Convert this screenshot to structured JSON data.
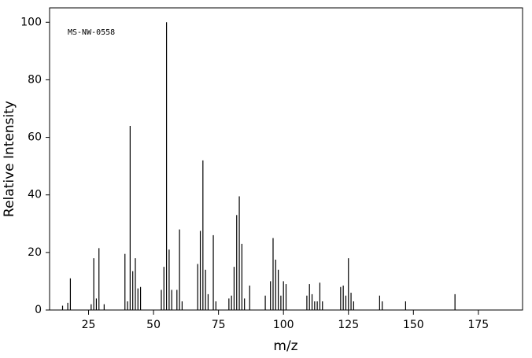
{
  "chart_data": {
    "type": "stem",
    "annotation": "MS-NW-0558",
    "xlabel": "m/z",
    "ylabel": "Relative Intensity",
    "color": "#000000",
    "x": [
      15,
      17,
      18,
      26,
      27,
      28,
      29,
      31,
      39,
      40,
      41,
      42,
      43,
      44,
      45,
      53,
      54,
      55,
      56,
      57,
      59,
      60,
      61,
      67,
      68,
      69,
      70,
      71,
      73,
      74,
      79,
      80,
      81,
      82,
      83,
      84,
      85,
      87,
      93,
      95,
      96,
      97,
      98,
      99,
      100,
      101,
      109,
      110,
      111,
      112,
      113,
      114,
      115,
      122,
      123,
      124,
      125,
      126,
      127,
      137,
      138,
      147,
      166
    ],
    "values": [
      1.5,
      2.5,
      11,
      2,
      18,
      4,
      21.5,
      2,
      19.5,
      3,
      64,
      13.5,
      18,
      7.5,
      8,
      7,
      15,
      100,
      21,
      7,
      7,
      28,
      3,
      16,
      27.5,
      52,
      14,
      5.5,
      26,
      3,
      4,
      5,
      15,
      33,
      39.5,
      23,
      4,
      8.5,
      5,
      10,
      25,
      17.5,
      14,
      5,
      10,
      9,
      5,
      9,
      5.5,
      3,
      3,
      9.5,
      3,
      8,
      8.5,
      5,
      18,
      6,
      3,
      5,
      3,
      3,
      5.5
    ],
    "xlim": [
      10,
      192
    ],
    "ylim": [
      0,
      105
    ],
    "xticks": [
      25,
      50,
      75,
      100,
      125,
      150,
      175
    ],
    "yticks": [
      0,
      20,
      40,
      60,
      80,
      100
    ]
  }
}
